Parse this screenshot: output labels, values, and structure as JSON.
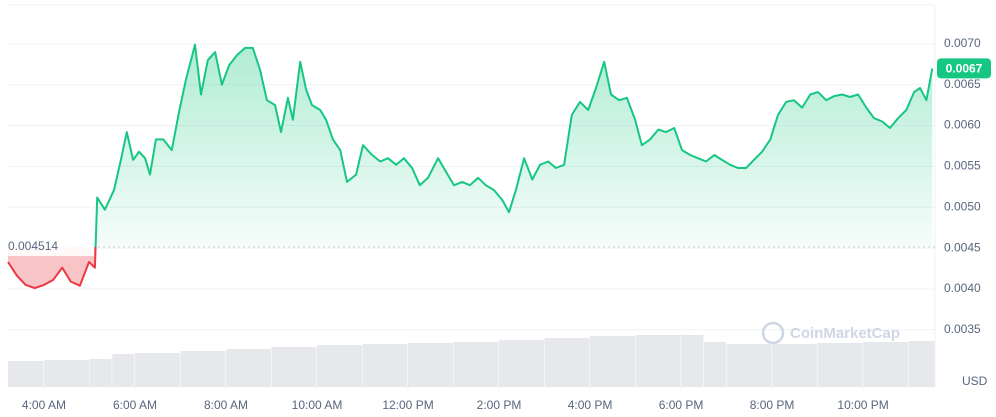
{
  "chart_data": {
    "type": "line",
    "currency": "USD",
    "watermark": "CoinMarketCap",
    "up_color": "#16c784",
    "down_color": "#ea3943",
    "volume_color": "#e6e8ec",
    "grid": true,
    "baseline": 0.004514,
    "current_price": 0.0067,
    "xlim": [
      3.21,
      23.58
    ],
    "xticks": [
      {
        "value": 4,
        "label": "4:00 AM"
      },
      {
        "value": 6,
        "label": "6:00 AM"
      },
      {
        "value": 8,
        "label": "8:00 AM"
      },
      {
        "value": 10,
        "label": "10:00 AM"
      },
      {
        "value": 12,
        "label": "12:00 PM"
      },
      {
        "value": 14,
        "label": "2:00 PM"
      },
      {
        "value": 16,
        "label": "4:00 PM"
      },
      {
        "value": 18,
        "label": "6:00 PM"
      },
      {
        "value": 20,
        "label": "8:00 PM"
      },
      {
        "value": 22,
        "label": "10:00 PM"
      }
    ],
    "ylim": [
      0.0028,
      0.0075
    ],
    "yticks": [
      0.0035,
      {
        "value": 0.004,
        "label": "0.0040"
      },
      0.0045,
      {
        "value": 0.005,
        "label": "0.0050"
      },
      0.0055,
      {
        "value": 0.006,
        "label": "0.0060"
      },
      0.0065,
      {
        "value": 0.007,
        "label": "0.0070"
      }
    ],
    "x": [
      3.21,
      3.41,
      3.6,
      3.8,
      4,
      4.2,
      4.4,
      4.59,
      4.79,
      4.99,
      5.12,
      5.17,
      5.34,
      5.54,
      5.69,
      5.82,
      5.96,
      6.09,
      6.22,
      6.33,
      6.46,
      6.62,
      6.81,
      6.97,
      7.12,
      7.32,
      7.45,
      7.6,
      7.76,
      7.91,
      8.07,
      8.24,
      8.42,
      8.59,
      8.75,
      8.9,
      9.08,
      9.21,
      9.36,
      9.47,
      9.63,
      9.76,
      9.89,
      10.07,
      10.2,
      10.35,
      10.51,
      10.66,
      10.86,
      11.01,
      11.21,
      11.39,
      11.56,
      11.74,
      11.91,
      12.09,
      12.26,
      12.44,
      12.66,
      12.84,
      13.01,
      13.19,
      13.36,
      13.54,
      13.71,
      13.89,
      14.07,
      14.22,
      14.37,
      14.55,
      14.73,
      14.9,
      15.08,
      15.25,
      15.43,
      15.6,
      15.78,
      15.96,
      16.13,
      16.31,
      16.46,
      16.64,
      16.81,
      16.99,
      17.14,
      17.32,
      17.5,
      17.67,
      17.85,
      18.02,
      18.2,
      18.37,
      18.55,
      18.73,
      18.9,
      19.08,
      19.25,
      19.43,
      19.6,
      19.78,
      19.96,
      20.13,
      20.31,
      20.48,
      20.66,
      20.84,
      21.01,
      21.19,
      21.36,
      21.54,
      21.71,
      21.89,
      22.07,
      22.24,
      22.42,
      22.59,
      22.77,
      22.95,
      23.12,
      23.25,
      23.39,
      23.52
    ],
    "values": [
      0.00433,
      0.00416,
      0.00405,
      0.00401,
      0.00405,
      0.00411,
      0.00426,
      0.00409,
      0.00404,
      0.00433,
      0.00426,
      0.00512,
      0.00497,
      0.00521,
      0.00558,
      0.00592,
      0.00558,
      0.00568,
      0.0056,
      0.0054,
      0.00583,
      0.00583,
      0.0057,
      0.00617,
      0.00656,
      0.00699,
      0.00638,
      0.0068,
      0.0069,
      0.0065,
      0.00674,
      0.00686,
      0.00695,
      0.00695,
      0.00668,
      0.00631,
      0.00625,
      0.00592,
      0.00634,
      0.00607,
      0.00678,
      0.00644,
      0.00625,
      0.00619,
      0.00607,
      0.00583,
      0.0057,
      0.00531,
      0.0054,
      0.00576,
      0.00564,
      0.00556,
      0.0056,
      0.00552,
      0.0056,
      0.00548,
      0.00527,
      0.00536,
      0.0056,
      0.00543,
      0.00527,
      0.00531,
      0.00527,
      0.00536,
      0.00527,
      0.00521,
      0.00509,
      0.00494,
      0.00521,
      0.0056,
      0.00534,
      0.00552,
      0.00556,
      0.00548,
      0.00552,
      0.00613,
      0.00629,
      0.00619,
      0.00646,
      0.00678,
      0.00638,
      0.00631,
      0.00634,
      0.00607,
      0.00576,
      0.00583,
      0.00595,
      0.00592,
      0.00597,
      0.0057,
      0.00564,
      0.0056,
      0.00556,
      0.00564,
      0.00558,
      0.00552,
      0.00548,
      0.00548,
      0.00558,
      0.00568,
      0.00583,
      0.00613,
      0.00629,
      0.00631,
      0.00622,
      0.00638,
      0.00641,
      0.00631,
      0.00636,
      0.00638,
      0.00635,
      0.00638,
      0.00622,
      0.00609,
      0.00605,
      0.00597,
      0.00609,
      0.00619,
      0.00641,
      0.00646,
      0.00631,
      0.0067
    ],
    "volume": {
      "vlim": [
        0,
        60
      ],
      "x": [
        3.21,
        4,
        5,
        5.5,
        6,
        7,
        8,
        9,
        10,
        11,
        12,
        13,
        14,
        15,
        16,
        17,
        18,
        18.5,
        19,
        20,
        21,
        22,
        23,
        23.58
      ],
      "values": [
        26,
        27,
        28,
        33,
        34,
        36,
        38,
        40,
        42,
        43,
        44,
        45,
        47,
        49,
        51,
        52,
        52,
        45,
        43,
        43,
        44,
        45,
        46,
        47
      ]
    }
  }
}
